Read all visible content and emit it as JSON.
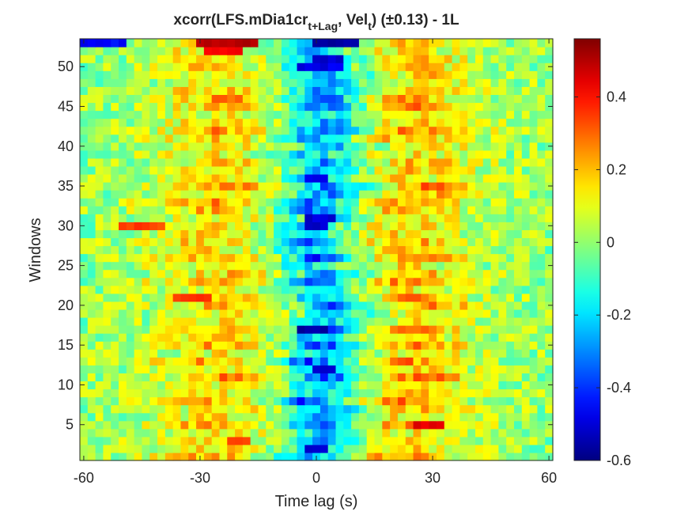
{
  "chart_data": {
    "type": "heatmap",
    "title": {
      "prefix": "xcorr(LFS.mDia1cr",
      "sub1": "t+Lag",
      "middle": ", Vel",
      "sub2": "t",
      "suffix": ")  (±0.13) - 1L"
    },
    "xlabel": "Time lag (s)",
    "ylabel": "Windows",
    "xlim": [
      -61,
      61
    ],
    "ylim": [
      0.5,
      53.5
    ],
    "xticks": [
      -60,
      -30,
      0,
      30,
      60
    ],
    "xtick_labels": [
      "-60",
      "-30",
      "0",
      "30",
      "60"
    ],
    "yticks": [
      5,
      10,
      15,
      20,
      25,
      30,
      35,
      40,
      45,
      50
    ],
    "ytick_labels": [
      "5",
      "10",
      "15",
      "20",
      "25",
      "30",
      "35",
      "40",
      "45",
      "50"
    ],
    "x_start": -60,
    "x_step": 2,
    "x_count": 61,
    "y_count": 53,
    "colorbar": {
      "colormap": "jet",
      "limits": [
        -0.6,
        0.56
      ],
      "ticks": [
        -0.6,
        -0.4,
        -0.2,
        0,
        0.2,
        0.4
      ],
      "tick_labels": [
        "-0.6",
        "-0.4",
        "-0.2",
        "0",
        "0.2",
        "0.4"
      ]
    },
    "significance_threshold": 0.13,
    "value_profile": {
      "lag_s": [
        -60,
        -50,
        -40,
        -35,
        -30,
        -25,
        -20,
        -15,
        -10,
        -5,
        -2,
        0,
        2,
        5,
        10,
        15,
        20,
        25,
        30,
        35,
        40,
        50,
        60
      ],
      "mean_r": [
        0.0,
        0.02,
        0.06,
        0.1,
        0.14,
        0.16,
        0.14,
        0.08,
        0.0,
        -0.12,
        -0.22,
        -0.26,
        -0.24,
        -0.18,
        -0.06,
        0.06,
        0.14,
        0.18,
        0.16,
        0.1,
        0.06,
        0.02,
        0.0
      ]
    },
    "row_overrides": [
      {
        "window": 53,
        "lag_range": [
          -30,
          -15
        ],
        "r": 0.5
      },
      {
        "window": 53,
        "lag_range": [
          -60,
          -50
        ],
        "r": -0.45
      },
      {
        "window": 53,
        "lag_range": [
          0,
          10
        ],
        "r": -0.55
      },
      {
        "window": 52,
        "lag_range": [
          -28,
          -20
        ],
        "r": 0.42
      },
      {
        "window": 51,
        "lag_range": [
          0,
          6
        ],
        "r": -0.5
      },
      {
        "window": 50,
        "lag_range": [
          -4,
          6
        ],
        "r": -0.48
      },
      {
        "window": 46,
        "lag_range": [
          -26,
          -20
        ],
        "r": 0.3
      },
      {
        "window": 46,
        "lag_range": [
          2,
          6
        ],
        "r": -0.35
      },
      {
        "window": 36,
        "lag_range": [
          -2,
          2
        ],
        "r": -0.48
      },
      {
        "window": 31,
        "lag_range": [
          -2,
          4
        ],
        "r": -0.5
      },
      {
        "window": 30,
        "lag_range": [
          -2,
          2
        ],
        "r": -0.52
      },
      {
        "window": 30,
        "lag_range": [
          -50,
          -40
        ],
        "r": 0.34
      },
      {
        "window": 21,
        "lag_range": [
          -36,
          -28
        ],
        "r": 0.36
      },
      {
        "window": 21,
        "lag_range": [
          22,
          28
        ],
        "r": 0.3
      },
      {
        "window": 17,
        "lag_range": [
          -4,
          2
        ],
        "r": -0.55
      },
      {
        "window": 17,
        "lag_range": [
          24,
          30
        ],
        "r": 0.3
      },
      {
        "window": 12,
        "lag_range": [
          0,
          4
        ],
        "r": -0.5
      },
      {
        "window": 5,
        "lag_range": [
          26,
          32
        ],
        "r": 0.45
      },
      {
        "window": 3,
        "lag_range": [
          -22,
          -18
        ],
        "r": 0.36
      },
      {
        "window": 2,
        "lag_range": [
          -2,
          2
        ],
        "r": -0.5
      }
    ]
  }
}
